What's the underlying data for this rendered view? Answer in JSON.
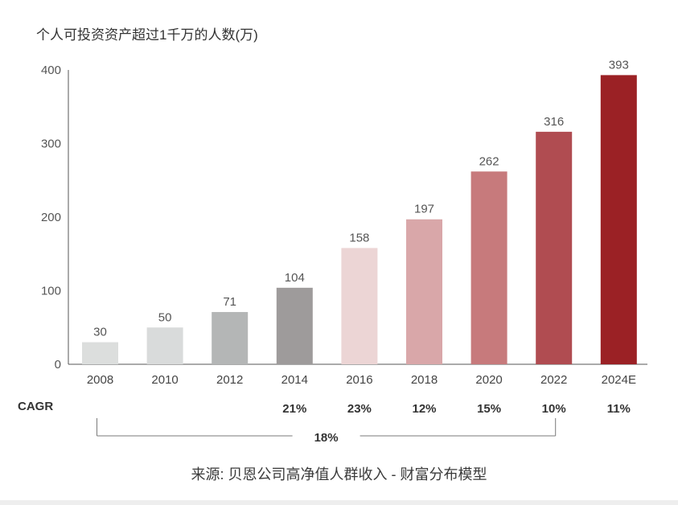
{
  "chart_data": {
    "type": "bar",
    "title": "个人可投资资产超过1千万的人数(万)",
    "xlabel": "",
    "ylabel": "",
    "categories": [
      "2008",
      "2010",
      "2012",
      "2014",
      "2016",
      "2018",
      "2020",
      "2022",
      "2024E"
    ],
    "values": [
      30,
      50,
      71,
      104,
      158,
      197,
      262,
      316,
      393
    ],
    "ylim": [
      0,
      400
    ],
    "yticks": [
      0,
      100,
      200,
      300,
      400
    ],
    "grid": false,
    "bar_colors": [
      "#dcdedd",
      "#d9dbdb",
      "#b4b6b6",
      "#9e9b9b",
      "#ecd5d5",
      "#d9a7a9",
      "#c77a7c",
      "#b04c51",
      "#9b2125"
    ],
    "axis_color": "#555555",
    "bracket_color": "#7a7a7a",
    "cagr": {
      "label": "CAGR",
      "values": [
        "",
        "",
        "",
        "21%",
        "23%",
        "12%",
        "15%",
        "10%",
        "11%"
      ],
      "overall": {
        "value": "18%",
        "from_index": 0,
        "to_index": 7
      }
    }
  },
  "source": "来源: 贝恩公司高净值人群收入 - 财富分布模型"
}
